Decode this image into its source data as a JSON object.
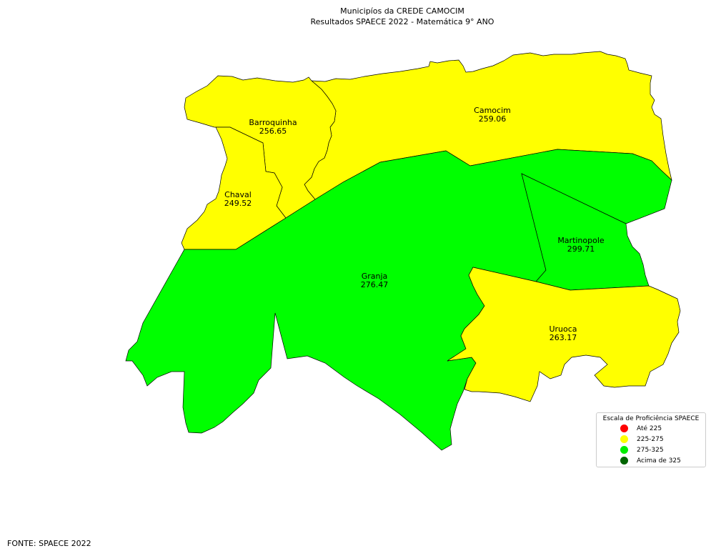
{
  "title": {
    "line1": "Municipíos da CREDE CAMOCIM",
    "line2": "Resultados SPAECE 2022 - Matemática 9° ANO"
  },
  "municipalities": [
    {
      "name": "Barroquinha",
      "value": "256.65",
      "color": "#ffff00"
    },
    {
      "name": "Camocim",
      "value": "259.06",
      "color": "#ffff00"
    },
    {
      "name": "Chaval",
      "value": "249.52",
      "color": "#ffff00"
    },
    {
      "name": "Granja",
      "value": "276.47",
      "color": "#00ff00"
    },
    {
      "name": "Martinopole",
      "value": "299.71",
      "color": "#00ff00"
    },
    {
      "name": "Uruoca",
      "value": "263.17",
      "color": "#ffff00"
    }
  ],
  "legend": {
    "title": "Escala de Proficiência SPAECE",
    "items": [
      {
        "label": "Até 225",
        "color": "#ff0000"
      },
      {
        "label": "225-275",
        "color": "#ffff00"
      },
      {
        "label": "275-325",
        "color": "#00ee00"
      },
      {
        "label": "Acima de 325",
        "color": "#006400"
      }
    ]
  },
  "source": "FONTE: SPAECE 2022"
}
